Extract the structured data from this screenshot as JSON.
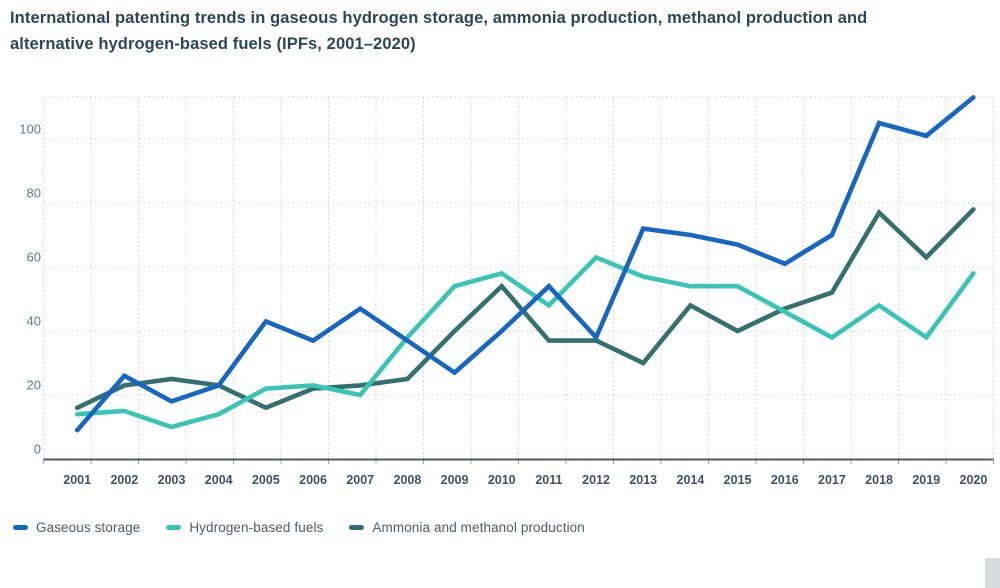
{
  "title": {
    "line1": "International patenting trends in gaseous hydrogen storage, ammonia production, methanol production and",
    "line2": "alternative hydrogen-based fuels (IPFs, 2001–2020)"
  },
  "chart_data": {
    "type": "line",
    "x": [
      2001,
      2002,
      2003,
      2004,
      2005,
      2006,
      2007,
      2008,
      2009,
      2010,
      2011,
      2012,
      2013,
      2014,
      2015,
      2016,
      2017,
      2018,
      2019,
      2020
    ],
    "series": [
      {
        "name": "Gaseous storage",
        "color": "#1666C4",
        "values": [
          9,
          26,
          18,
          23,
          43,
          37,
          47,
          37,
          27,
          40,
          54,
          38,
          72,
          70,
          67,
          61,
          70,
          105,
          101,
          113
        ]
      },
      {
        "name": "Hydrogen-based fuels",
        "color": "#38C6B4",
        "values": [
          14,
          15,
          10,
          14,
          22,
          23,
          20,
          38,
          54,
          58,
          48,
          63,
          57,
          54,
          54,
          46,
          38,
          48,
          38,
          58
        ]
      },
      {
        "name": "Ammonia and methanol production",
        "color": "#34706E",
        "values": [
          16,
          23,
          25,
          23,
          16,
          22,
          23,
          25,
          40,
          54,
          37,
          37,
          30,
          48,
          40,
          47,
          52,
          77,
          63,
          78
        ]
      }
    ],
    "yticks": [
      0,
      20,
      40,
      60,
      80,
      100
    ],
    "ylim": [
      0,
      113
    ],
    "xlabel": "",
    "ylabel": "",
    "grid": true,
    "legend_position": "bottom"
  },
  "colors": {
    "background": "#ffffff",
    "gridline": "#c9ced3",
    "axis": "#4e5b67",
    "title_text": "#2a4657",
    "tick_text": "#63798a"
  }
}
